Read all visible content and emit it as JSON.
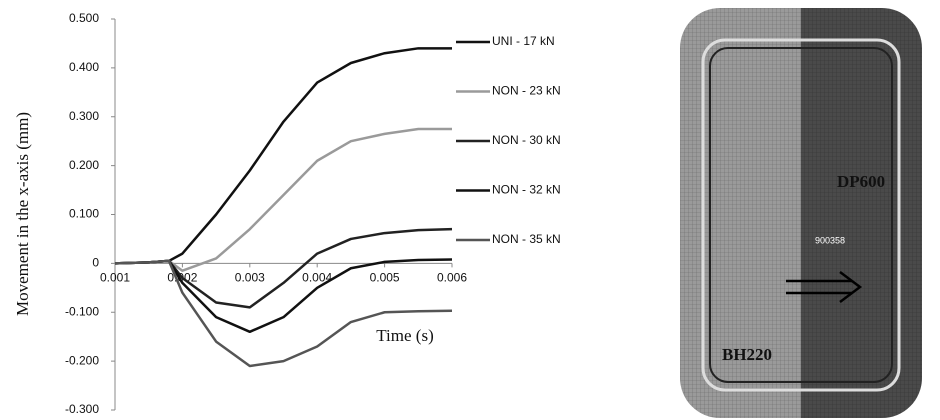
{
  "chart_data": {
    "type": "line",
    "ylabel": "Movement in the x-axis (mm)",
    "xlabel": "Time (s)",
    "x": [
      0.001,
      0.0015,
      0.0018,
      0.002,
      0.0025,
      0.003,
      0.0035,
      0.004,
      0.0045,
      0.005,
      0.0055,
      0.006
    ],
    "series": [
      {
        "name": "UNI - 17 kN",
        "color": "#111111",
        "values": [
          0,
          0.002,
          0.005,
          0.02,
          0.1,
          0.19,
          0.29,
          0.37,
          0.41,
          0.43,
          0.44,
          0.44
        ]
      },
      {
        "name": "NON - 23 kN",
        "color": "#9a9a9a",
        "values": [
          0,
          0.002,
          0.005,
          -0.015,
          0.01,
          0.07,
          0.14,
          0.21,
          0.25,
          0.265,
          0.275,
          0.275
        ]
      },
      {
        "name": "NON - 30 kN",
        "color": "#222222",
        "values": [
          0,
          0.002,
          0.005,
          -0.03,
          -0.08,
          -0.09,
          -0.04,
          0.02,
          0.05,
          0.062,
          0.068,
          0.07
        ]
      },
      {
        "name": "NON - 32 kN",
        "color": "#111111",
        "values": [
          0,
          0.002,
          0.005,
          -0.04,
          -0.11,
          -0.14,
          -0.11,
          -0.05,
          -0.01,
          0.003,
          0.007,
          0.008
        ]
      },
      {
        "name": "NON - 35 kN",
        "color": "#555555",
        "values": [
          0,
          0.002,
          0.005,
          -0.06,
          -0.16,
          -0.21,
          -0.2,
          -0.17,
          -0.12,
          -0.1,
          -0.098,
          -0.097
        ]
      }
    ],
    "xlim": [
      0.001,
      0.006
    ],
    "xticks": [
      0.001,
      0.002,
      0.003,
      0.004,
      0.005,
      0.006
    ],
    "ylim": [
      -0.3,
      0.5
    ],
    "yticks": [
      {
        "value": 0.5,
        "label": "0.500"
      },
      {
        "value": 0.4,
        "label": "0.400"
      },
      {
        "value": 0.3,
        "label": "0.300"
      },
      {
        "value": 0.2,
        "label": "0.200"
      },
      {
        "value": 0.1,
        "label": "0.100"
      },
      0,
      {
        "value": -0.1,
        "label": "-0.100"
      },
      {
        "value": -0.2,
        "label": "-0.200"
      },
      {
        "value": -0.3,
        "label": "-0.300"
      }
    ],
    "grid": false
  },
  "image": {
    "labels": [
      "DP600",
      "900358",
      "BH220"
    ]
  }
}
